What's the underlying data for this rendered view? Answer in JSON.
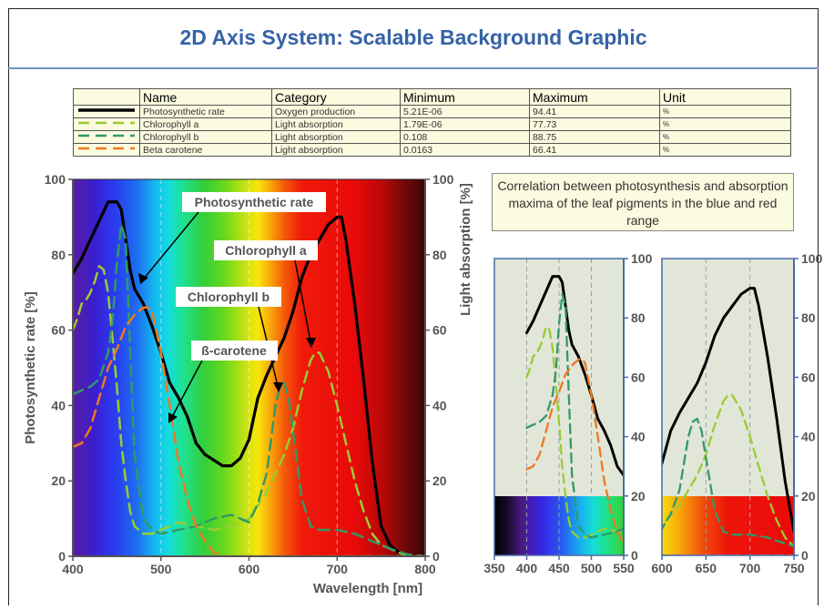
{
  "title": "2D Axis System: Scalable Background Graphic",
  "table": {
    "headers": [
      "Name",
      "Category",
      "Minimum",
      "Maximum",
      "Unit"
    ],
    "rows": [
      {
        "name": "Photosynthetic rate",
        "category": "Oxygen production",
        "min": "5.21E-06",
        "max": "94.41",
        "unit": "%",
        "color": "#000000",
        "dash": "solid"
      },
      {
        "name": "Chlorophyll a",
        "category": "Light absorption",
        "min": "1.79E-06",
        "max": "77.73",
        "unit": "%",
        "color": "#99cc33",
        "dash": "dashed"
      },
      {
        "name": "Chlorophyll b",
        "category": "Light absorption",
        "min": "0.108",
        "max": "88.75",
        "unit": "%",
        "color": "#339966",
        "dash": "dashed"
      },
      {
        "name": "Beta carotene",
        "category": "Light absorption",
        "min": "0.0163",
        "max": "66.41",
        "unit": "%",
        "color": "#f07820",
        "dash": "dashed"
      }
    ]
  },
  "correlation_text": "Correlation between photosynthesis and absorption maxima of the leaf pigments in the blue and red range",
  "annotations": {
    "photosynthetic_rate": "Photosynthetic rate",
    "chlorophyll_a": "Chlorophyll a",
    "chlorophyll_b": "Chlorophyll b",
    "beta_carotene": "ß-carotene"
  },
  "chart_data": [
    {
      "type": "line",
      "xlabel": "Wavelength [nm]",
      "ylabel": "Photosynthetic rate [%]",
      "y2label": "Light absorption [%]",
      "xlim": [
        400,
        800
      ],
      "ylim": [
        0,
        100
      ],
      "y2lim": [
        0,
        100
      ],
      "xticks": [
        400,
        500,
        600,
        700,
        800
      ],
      "yticks": [
        0,
        20,
        40,
        60,
        80,
        100
      ],
      "background": "visible spectrum gradient",
      "series": [
        {
          "name": "Photosynthetic rate",
          "color": "#000000",
          "dash": "solid",
          "axis": "left",
          "x": [
            400,
            410,
            420,
            430,
            440,
            450,
            455,
            460,
            465,
            470,
            480,
            490,
            500,
            510,
            520,
            530,
            540,
            550,
            560,
            570,
            580,
            590,
            600,
            610,
            620,
            630,
            640,
            650,
            660,
            670,
            680,
            690,
            700,
            705,
            710,
            720,
            730,
            740,
            750,
            760,
            770,
            780,
            800
          ],
          "y": [
            75,
            79,
            84,
            89,
            94,
            94,
            92,
            84,
            76,
            71,
            67,
            61,
            54,
            46,
            42,
            37,
            30,
            27,
            25.5,
            24,
            24,
            26,
            31,
            42,
            48,
            53,
            58,
            65,
            74,
            80,
            84,
            88,
            90,
            90,
            84,
            67,
            47,
            25,
            8,
            3,
            1,
            0,
            0
          ]
        },
        {
          "name": "Chlorophyll a",
          "color": "#99cc33",
          "dash": "dashed",
          "axis": "right",
          "x": [
            400,
            405,
            410,
            415,
            420,
            425,
            430,
            435,
            440,
            445,
            450,
            455,
            460,
            465,
            470,
            480,
            490,
            500,
            520,
            540,
            560,
            580,
            600,
            620,
            640,
            650,
            660,
            670,
            675,
            680,
            690,
            700,
            710,
            720,
            730,
            740,
            750,
            760,
            770,
            780,
            790,
            800
          ],
          "y": [
            60,
            63,
            67,
            68,
            70,
            73,
            77,
            76,
            70,
            58,
            45,
            30,
            20,
            12,
            8,
            6,
            6,
            7,
            9,
            8,
            7,
            8,
            10,
            17,
            27,
            34,
            44,
            52,
            54,
            54,
            49,
            40,
            30,
            20,
            12,
            6,
            3,
            2,
            1,
            0,
            0,
            0
          ]
        },
        {
          "name": "Chlorophyll b",
          "color": "#339966",
          "dash": "dashed",
          "axis": "right",
          "x": [
            400,
            410,
            420,
            430,
            440,
            445,
            450,
            455,
            460,
            465,
            470,
            480,
            490,
            500,
            520,
            540,
            560,
            580,
            600,
            610,
            620,
            630,
            635,
            640,
            645,
            650,
            660,
            670,
            680,
            690,
            700,
            720,
            740,
            760,
            780,
            800
          ],
          "y": [
            43,
            44,
            45,
            47,
            54,
            62,
            78,
            88,
            84,
            55,
            27,
            10,
            7,
            6,
            7,
            8,
            10,
            11,
            9,
            14,
            22,
            40,
            45,
            46,
            42,
            33,
            15,
            8,
            7,
            7,
            7,
            6,
            4,
            2,
            0.5,
            0
          ]
        },
        {
          "name": "Beta carotene",
          "color": "#f07820",
          "dash": "dashed",
          "axis": "right",
          "x": [
            400,
            410,
            420,
            430,
            440,
            450,
            460,
            470,
            480,
            485,
            490,
            500,
            510,
            520,
            530,
            540,
            550,
            560,
            570,
            800
          ],
          "y": [
            29,
            30,
            34,
            42,
            50,
            55,
            61,
            64,
            66,
            66,
            65,
            54,
            40,
            25,
            15,
            8,
            4,
            1,
            0,
            0
          ]
        }
      ]
    },
    {
      "type": "line",
      "xlim": [
        350,
        550
      ],
      "ylim": [
        0,
        100
      ],
      "xticks": [
        350,
        400,
        450,
        500,
        550
      ],
      "yticks": [
        0,
        20,
        40,
        60,
        80,
        100
      ],
      "series_ref": "subset of main chart, 400-550 nm"
    },
    {
      "type": "line",
      "xlim": [
        600,
        750
      ],
      "ylim": [
        0,
        100
      ],
      "xticks": [
        600,
        650,
        700,
        750
      ],
      "yticks": [
        0,
        20,
        40,
        60,
        80,
        100
      ],
      "series_ref": "subset of main chart, 600-750 nm"
    }
  ]
}
